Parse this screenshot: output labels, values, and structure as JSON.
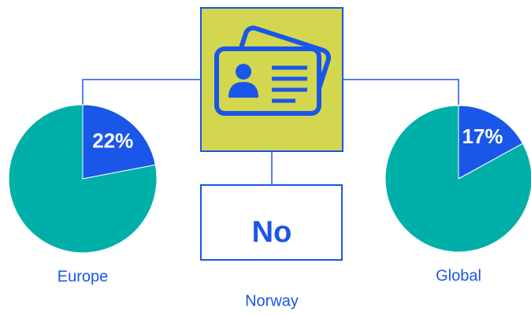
{
  "chart_data": [
    {
      "type": "pie",
      "title": "Europe",
      "values": [
        22,
        78
      ],
      "value_labels": [
        "22%",
        null
      ],
      "colors": [
        "#1a56e8",
        "#00b0a8"
      ]
    },
    {
      "type": "pie",
      "title": "Global",
      "values": [
        17,
        83
      ],
      "value_labels": [
        "17%",
        null
      ],
      "colors": [
        "#1a56e8",
        "#00b0a8"
      ]
    }
  ],
  "center": {
    "answer": "No",
    "label": "Norway"
  }
}
